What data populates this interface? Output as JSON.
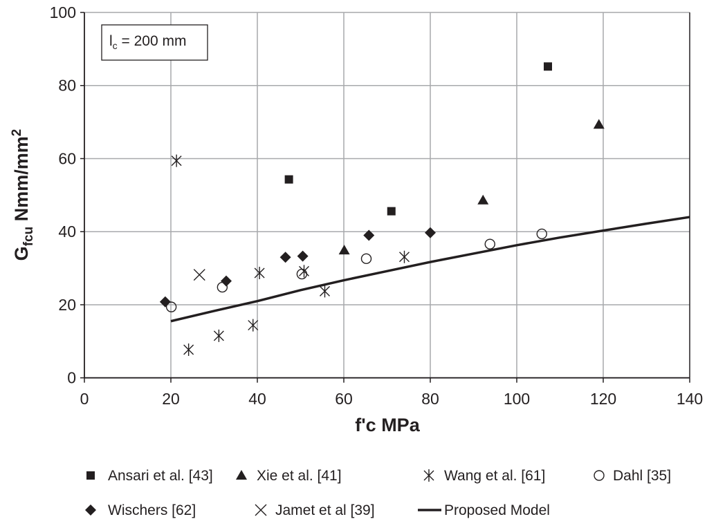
{
  "chart_data": {
    "type": "scatter",
    "xlabel": "f'c MPa",
    "ylabel_main": "G",
    "ylabel_sub": "fcu",
    "ylabel_rest": " Nmm/mm",
    "ylabel_sup": "2",
    "xlim": [
      0,
      140
    ],
    "ylim": [
      0,
      100
    ],
    "xticks": [
      0,
      20,
      40,
      60,
      80,
      100,
      120,
      140
    ],
    "yticks": [
      0,
      20,
      40,
      60,
      80,
      100
    ],
    "grid": true,
    "legend_placement": "bottom",
    "annotation": {
      "main": "l",
      "sub": "c",
      "rest": " = 200 mm"
    },
    "colors": {
      "marker": "#231f20",
      "grid": "#a7a9ac"
    },
    "series": [
      {
        "name": "Ansari et al. [43]",
        "marker": "square",
        "points": [
          [
            47.3,
            54.3
          ],
          [
            71.0,
            45.6
          ],
          [
            107.2,
            85.2
          ]
        ]
      },
      {
        "name": "Xie et al. [41]",
        "marker": "triangle",
        "points": [
          [
            60.1,
            34.9
          ],
          [
            92.2,
            48.6
          ],
          [
            119.0,
            69.3
          ]
        ]
      },
      {
        "name": "Wang et al. [61]",
        "marker": "asterisk",
        "points": [
          [
            21.3,
            59.4
          ],
          [
            24.1,
            7.7
          ],
          [
            31.1,
            11.5
          ],
          [
            39.0,
            14.4
          ],
          [
            40.5,
            28.7
          ],
          [
            50.8,
            29.2
          ],
          [
            55.6,
            23.7
          ],
          [
            74.0,
            33.1
          ]
        ]
      },
      {
        "name": "Dahl [35]",
        "marker": "circle",
        "points": [
          [
            20.1,
            19.4
          ],
          [
            31.9,
            24.8
          ],
          [
            50.3,
            28.4
          ],
          [
            65.2,
            32.6
          ],
          [
            93.8,
            36.6
          ],
          [
            105.8,
            39.4
          ]
        ]
      },
      {
        "name": "Wischers [62]",
        "marker": "diamond",
        "points": [
          [
            18.7,
            20.8
          ],
          [
            32.8,
            26.5
          ],
          [
            46.5,
            33.0
          ],
          [
            50.5,
            33.3
          ],
          [
            65.8,
            39.0
          ],
          [
            80.0,
            39.7
          ]
        ]
      },
      {
        "name": "Jamet et al [39]",
        "marker": "x",
        "points": [
          [
            26.6,
            28.2
          ]
        ]
      },
      {
        "name": "Proposed Model",
        "marker": "line",
        "points": [
          [
            20,
            15.5
          ],
          [
            30,
            18.3
          ],
          [
            40,
            21.0
          ],
          [
            50,
            24.0
          ],
          [
            60,
            26.7
          ],
          [
            70,
            29.2
          ],
          [
            80,
            31.7
          ],
          [
            90,
            34.0
          ],
          [
            100,
            36.3
          ],
          [
            110,
            38.4
          ],
          [
            120,
            40.3
          ],
          [
            130,
            42.2
          ],
          [
            140,
            44.0
          ]
        ]
      }
    ]
  }
}
